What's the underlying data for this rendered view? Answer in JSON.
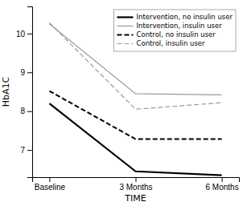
{
  "chart_data": {
    "type": "line",
    "xlabel": "TIME",
    "ylabel": "HbA1C",
    "categories": [
      "Baseline",
      "3 Months",
      "6 Months"
    ],
    "series": [
      {
        "name": "Intervention, no insulin user",
        "color": "#000000",
        "line_style": "solid",
        "values": [
          8.2,
          6.45,
          6.35
        ]
      },
      {
        "name": "Intervention, insulin user",
        "color": "#999999",
        "line_style": "solid",
        "values": [
          10.25,
          8.45,
          8.42
        ]
      },
      {
        "name": "Control, no insulin user",
        "color": "#000000",
        "line_style": "dashed",
        "values": [
          8.52,
          7.28,
          7.28
        ]
      },
      {
        "name": "Control, insulin user",
        "color": "#999999",
        "line_style": "dashed",
        "values": [
          10.28,
          8.05,
          8.22
        ]
      }
    ],
    "ylim": [
      6.3,
      10.7
    ],
    "yticks": [
      7,
      8,
      9,
      10
    ],
    "grid": false,
    "legend": "upper right"
  }
}
